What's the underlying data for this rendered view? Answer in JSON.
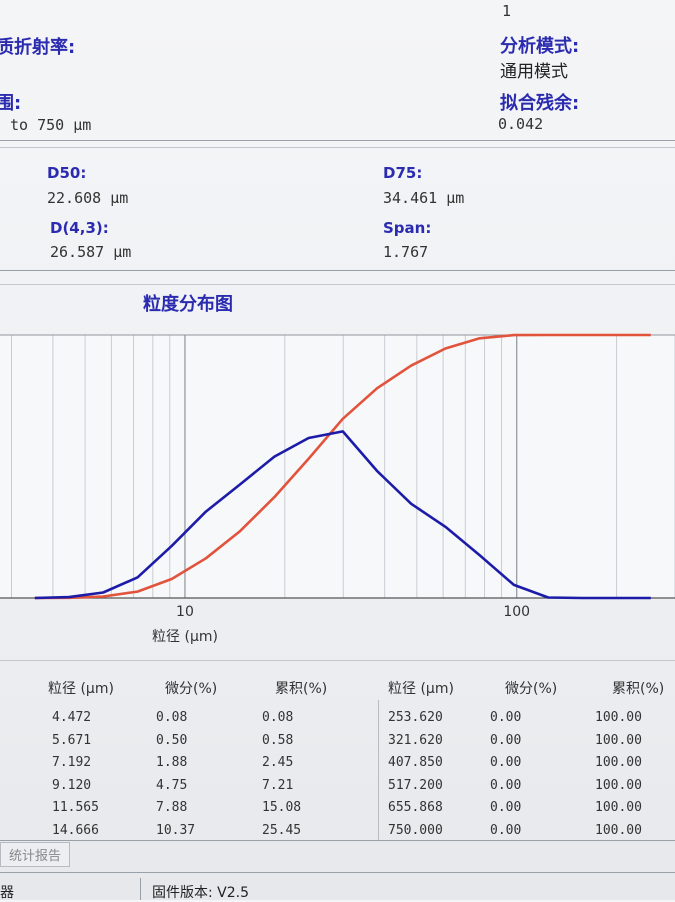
{
  "header": {
    "page_number": "1",
    "refractive_index_label": "质折射率:",
    "analysis_mode_label": "分析模式:",
    "analysis_mode": "通用模式",
    "range_label": "围:",
    "range": "to 750 μm",
    "fit_residual_label": "拟合残余:",
    "fit_residual": "0.042"
  },
  "results": [
    {
      "label": "D50:",
      "value": "22.608 μm"
    },
    {
      "label": "D75:",
      "value": "34.461 μm"
    },
    {
      "label": "D(4,3):",
      "value": "26.587 μm"
    },
    {
      "label": "Span:",
      "value": "1.767"
    }
  ],
  "chart_data": {
    "type": "line",
    "title": "粒度分布图",
    "x_label": "粒径 (μm)",
    "log_x": true,
    "x": [
      3.527,
      4.472,
      5.671,
      7.192,
      9.12,
      11.565,
      14.666,
      18.6,
      23.58,
      29.9,
      37.92,
      48.09,
      60.98,
      77.33,
      98.07,
      124.4,
      157.7,
      200,
      253.62
    ],
    "xlim": [
      2.77,
      300
    ],
    "xticks": [
      10,
      100
    ],
    "xminor": [
      3,
      4,
      5,
      6,
      7,
      8,
      9,
      20,
      30,
      40,
      50,
      60,
      70,
      80,
      90,
      200,
      300
    ],
    "grid": true,
    "ylim": [
      0,
      100
    ],
    "y2lim": [
      0,
      24
    ],
    "series": [
      {
        "color": "#e2533c",
        "values": [
          0,
          0.08,
          0.58,
          2.45,
          7.21,
          15.08,
          25.45,
          38.35,
          52.95,
          68.15,
          79.75,
          88.35,
          94.85,
          98.75,
          99.95,
          100,
          100,
          100,
          100
        ]
      },
      {
        "color": "#1c1ca8",
        "axis": "y2",
        "values": [
          0,
          0.08,
          0.5,
          1.88,
          4.75,
          7.88,
          10.37,
          12.9,
          14.6,
          15.2,
          11.6,
          8.6,
          6.5,
          3.9,
          1.2,
          0.05,
          0,
          0,
          0
        ]
      }
    ]
  },
  "table": {
    "columns": [
      "粒径 (μm)",
      "微分(%)",
      "累积(%)"
    ],
    "left_rows": [
      [
        "4.472",
        "0.08",
        "0.08"
      ],
      [
        "5.671",
        "0.50",
        "0.58"
      ],
      [
        "7.192",
        "1.88",
        "2.45"
      ],
      [
        "9.120",
        "4.75",
        "7.21"
      ],
      [
        "11.565",
        "7.88",
        "15.08"
      ],
      [
        "14.666",
        "10.37",
        "25.45"
      ]
    ],
    "right_rows": [
      [
        "253.620",
        "0.00",
        "100.00"
      ],
      [
        "321.620",
        "0.00",
        "100.00"
      ],
      [
        "407.850",
        "0.00",
        "100.00"
      ],
      [
        "517.200",
        "0.00",
        "100.00"
      ],
      [
        "655.868",
        "0.00",
        "100.00"
      ],
      [
        "750.000",
        "0.00",
        "100.00"
      ]
    ]
  },
  "footer": {
    "tab": "统计报告",
    "device": "器",
    "firmware": "固件版本: V2.5"
  }
}
